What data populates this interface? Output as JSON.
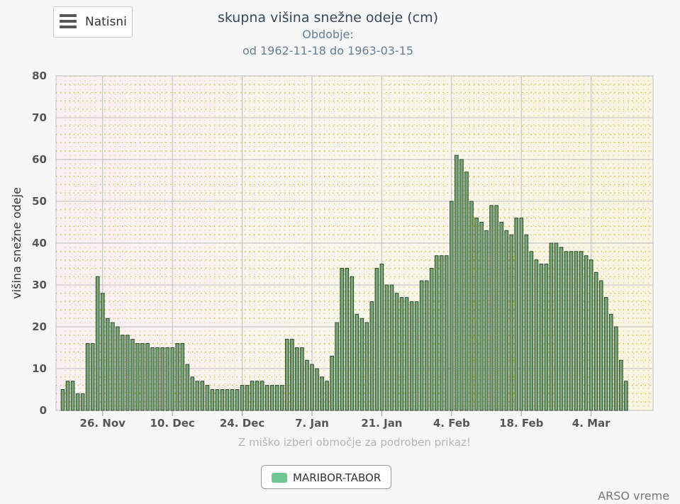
{
  "menu": {
    "label": "Natisni",
    "icon": "hamburger-menu-icon"
  },
  "credit": "ARSO vreme",
  "hint": "Z miško izberi območje za podroben prikaz!",
  "colors": {
    "bar_fill": "#7aa576",
    "bar_stroke": "#26482f",
    "legend_swatch": "#6fc494",
    "dots": "#c8b400"
  },
  "chart_data": {
    "type": "bar",
    "title": "skupna višina snežne odeje (cm)",
    "subtitle": "Obdobje:",
    "subtitle2": "od 1962-11-18 do 1963-03-15",
    "xlabel": "",
    "ylabel": "višina snežne odeje",
    "ylim": [
      0,
      80
    ],
    "yticks": [
      0,
      10,
      20,
      30,
      40,
      50,
      60,
      70,
      80
    ],
    "x_start": "1962-11-18",
    "xticks": [
      {
        "label": "26. Nov",
        "day": 8
      },
      {
        "label": "10. Dec",
        "day": 22
      },
      {
        "label": "24. Dec",
        "day": 36
      },
      {
        "label": "7. Jan",
        "day": 50
      },
      {
        "label": "21. Jan",
        "day": 64
      },
      {
        "label": "4. Feb",
        "day": 78
      },
      {
        "label": "18. Feb",
        "day": 92
      },
      {
        "label": "4. Mar",
        "day": 106
      }
    ],
    "grid": true,
    "legend": "bottom-center",
    "series": [
      {
        "name": "MARIBOR-TABOR",
        "values": [
          5,
          7,
          7,
          4,
          4,
          16,
          16,
          32,
          28,
          22,
          21,
          20,
          18,
          18,
          17,
          16,
          16,
          16,
          15,
          15,
          15,
          15,
          15,
          16,
          16,
          11,
          8,
          7,
          7,
          6,
          5,
          5,
          5,
          5,
          5,
          5,
          6,
          6,
          7,
          7,
          7,
          6,
          6,
          6,
          6,
          17,
          17,
          15,
          15,
          12,
          11,
          10,
          8,
          7,
          13,
          21,
          34,
          34,
          32,
          23,
          22,
          21,
          26,
          34,
          35,
          30,
          30,
          28,
          27,
          27,
          26,
          26,
          31,
          31,
          34,
          37,
          37,
          37,
          50,
          61,
          60,
          57,
          50,
          46,
          45,
          43,
          49,
          49,
          45,
          43,
          42,
          46,
          46,
          42,
          38,
          36,
          35,
          35,
          40,
          40,
          39,
          38,
          38,
          38,
          38,
          37,
          36,
          33,
          31,
          27,
          23,
          20,
          12,
          7
        ]
      }
    ]
  }
}
